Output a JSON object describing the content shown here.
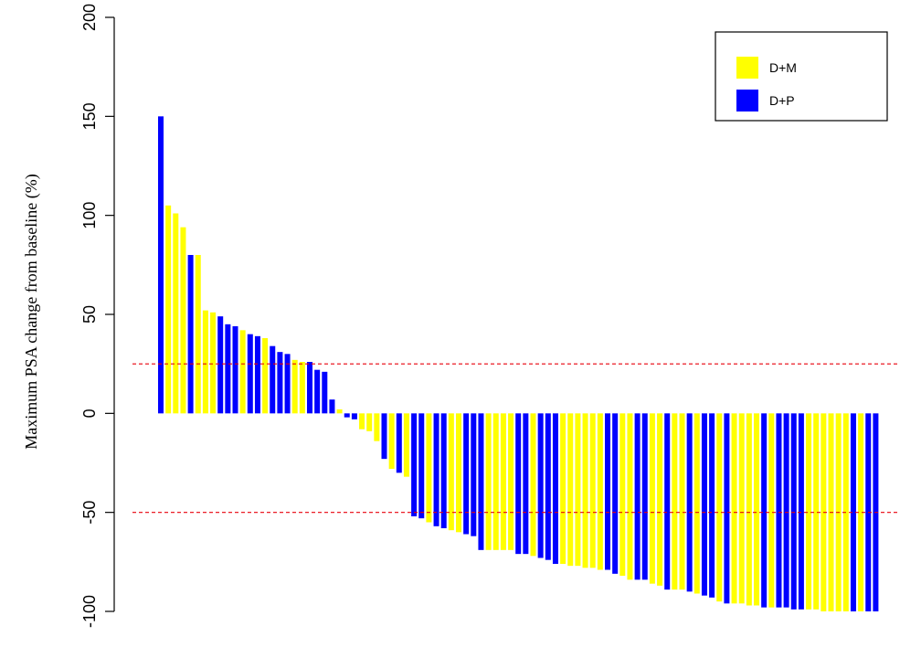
{
  "chart_data": {
    "type": "bar",
    "title": "",
    "xlabel": "",
    "ylabel": "Maximum PSA change from baseline (%)",
    "ylim": [
      -100,
      200
    ],
    "yticks": [
      "200",
      "150",
      "100",
      "50",
      "0",
      "-50",
      "-100"
    ],
    "reference_lines": [
      25,
      -50
    ],
    "reference_line_color": "#e8000b",
    "legend": {
      "placement": "top-right"
    },
    "series": [
      {
        "name": "D+M",
        "color": "#ffff00"
      },
      {
        "name": "D+P",
        "color": "#0000ff"
      }
    ],
    "bars": [
      {
        "v": 150,
        "s": "D+P"
      },
      {
        "v": 105,
        "s": "D+M"
      },
      {
        "v": 101,
        "s": "D+M"
      },
      {
        "v": 94,
        "s": "D+M"
      },
      {
        "v": 80,
        "s": "D+P"
      },
      {
        "v": 80,
        "s": "D+M"
      },
      {
        "v": 52,
        "s": "D+M"
      },
      {
        "v": 51,
        "s": "D+M"
      },
      {
        "v": 49,
        "s": "D+P"
      },
      {
        "v": 45,
        "s": "D+P"
      },
      {
        "v": 44,
        "s": "D+P"
      },
      {
        "v": 42,
        "s": "D+M"
      },
      {
        "v": 40,
        "s": "D+P"
      },
      {
        "v": 39,
        "s": "D+P"
      },
      {
        "v": 38,
        "s": "D+M"
      },
      {
        "v": 34,
        "s": "D+P"
      },
      {
        "v": 31,
        "s": "D+P"
      },
      {
        "v": 30,
        "s": "D+P"
      },
      {
        "v": 27,
        "s": "D+M"
      },
      {
        "v": 26,
        "s": "D+M"
      },
      {
        "v": 26,
        "s": "D+P"
      },
      {
        "v": 22,
        "s": "D+P"
      },
      {
        "v": 21,
        "s": "D+P"
      },
      {
        "v": 7,
        "s": "D+P"
      },
      {
        "v": 2,
        "s": "D+M"
      },
      {
        "v": -2,
        "s": "D+P"
      },
      {
        "v": -3,
        "s": "D+P"
      },
      {
        "v": -8,
        "s": "D+M"
      },
      {
        "v": -9,
        "s": "D+M"
      },
      {
        "v": -14,
        "s": "D+M"
      },
      {
        "v": -23,
        "s": "D+P"
      },
      {
        "v": -28,
        "s": "D+M"
      },
      {
        "v": -30,
        "s": "D+P"
      },
      {
        "v": -32,
        "s": "D+M"
      },
      {
        "v": -52,
        "s": "D+P"
      },
      {
        "v": -53,
        "s": "D+P"
      },
      {
        "v": -55,
        "s": "D+M"
      },
      {
        "v": -57,
        "s": "D+P"
      },
      {
        "v": -58,
        "s": "D+P"
      },
      {
        "v": -59,
        "s": "D+M"
      },
      {
        "v": -60,
        "s": "D+M"
      },
      {
        "v": -61,
        "s": "D+P"
      },
      {
        "v": -62,
        "s": "D+P"
      },
      {
        "v": -69,
        "s": "D+P"
      },
      {
        "v": -69,
        "s": "D+M"
      },
      {
        "v": -69,
        "s": "D+M"
      },
      {
        "v": -69,
        "s": "D+M"
      },
      {
        "v": -69,
        "s": "D+M"
      },
      {
        "v": -71,
        "s": "D+P"
      },
      {
        "v": -71,
        "s": "D+P"
      },
      {
        "v": -72,
        "s": "D+M"
      },
      {
        "v": -73,
        "s": "D+P"
      },
      {
        "v": -74,
        "s": "D+P"
      },
      {
        "v": -76,
        "s": "D+P"
      },
      {
        "v": -76,
        "s": "D+M"
      },
      {
        "v": -77,
        "s": "D+M"
      },
      {
        "v": -77,
        "s": "D+M"
      },
      {
        "v": -78,
        "s": "D+M"
      },
      {
        "v": -78,
        "s": "D+M"
      },
      {
        "v": -79,
        "s": "D+M"
      },
      {
        "v": -79,
        "s": "D+P"
      },
      {
        "v": -81,
        "s": "D+P"
      },
      {
        "v": -82,
        "s": "D+M"
      },
      {
        "v": -84,
        "s": "D+M"
      },
      {
        "v": -84,
        "s": "D+P"
      },
      {
        "v": -84,
        "s": "D+P"
      },
      {
        "v": -86,
        "s": "D+M"
      },
      {
        "v": -87,
        "s": "D+M"
      },
      {
        "v": -89,
        "s": "D+P"
      },
      {
        "v": -89,
        "s": "D+M"
      },
      {
        "v": -89,
        "s": "D+M"
      },
      {
        "v": -90,
        "s": "D+P"
      },
      {
        "v": -91,
        "s": "D+M"
      },
      {
        "v": -92,
        "s": "D+P"
      },
      {
        "v": -93,
        "s": "D+P"
      },
      {
        "v": -95,
        "s": "D+M"
      },
      {
        "v": -96,
        "s": "D+P"
      },
      {
        "v": -96,
        "s": "D+M"
      },
      {
        "v": -96,
        "s": "D+M"
      },
      {
        "v": -97,
        "s": "D+M"
      },
      {
        "v": -97,
        "s": "D+M"
      },
      {
        "v": -98,
        "s": "D+P"
      },
      {
        "v": -98,
        "s": "D+M"
      },
      {
        "v": -98,
        "s": "D+P"
      },
      {
        "v": -98,
        "s": "D+P"
      },
      {
        "v": -99,
        "s": "D+P"
      },
      {
        "v": -99,
        "s": "D+P"
      },
      {
        "v": -99,
        "s": "D+M"
      },
      {
        "v": -99,
        "s": "D+M"
      },
      {
        "v": -100,
        "s": "D+M"
      },
      {
        "v": -100,
        "s": "D+M"
      },
      {
        "v": -100,
        "s": "D+M"
      },
      {
        "v": -100,
        "s": "D+M"
      },
      {
        "v": -100,
        "s": "D+P"
      },
      {
        "v": -100,
        "s": "D+M"
      },
      {
        "v": -100,
        "s": "D+P"
      },
      {
        "v": -100,
        "s": "D+P"
      }
    ]
  }
}
